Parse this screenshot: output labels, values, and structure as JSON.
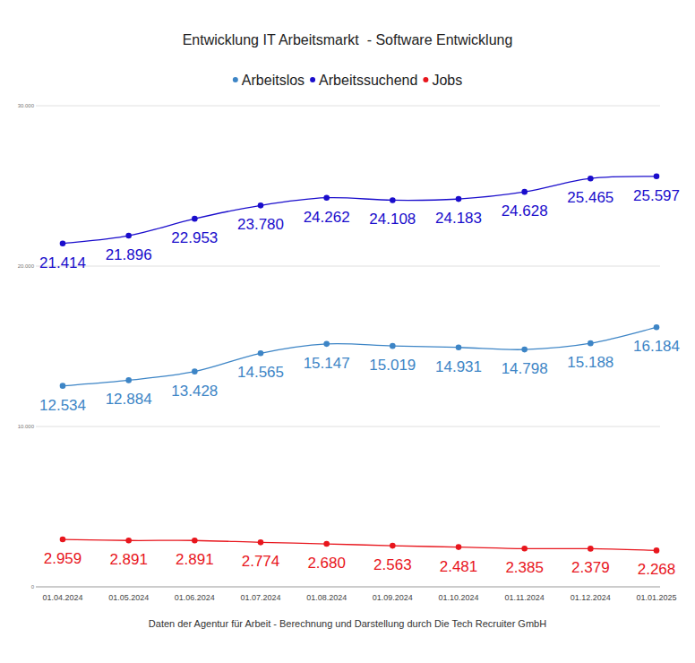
{
  "chart_data": {
    "type": "line",
    "title": "Entwicklung IT Arbeitsmarkt  - Software Entwicklung",
    "source": "Daten der Agentur für Arbeit - Berechnung und Darstellung durch Die Tech Recruiter GmbH",
    "categories": [
      "01.04.2024",
      "01.05.2024",
      "01.06.2024",
      "01.07.2024",
      "01.08.2024",
      "01.09.2024",
      "01.10.2024",
      "01.11.2024",
      "01.12.2024",
      "01.01.2025"
    ],
    "series": [
      {
        "name": "Arbeitslos",
        "color": "#3d85c6",
        "values": [
          12534,
          12884,
          13428,
          14565,
          15147,
          15019,
          14931,
          14798,
          15188,
          16184
        ],
        "value_labels": [
          "12.534",
          "12.884",
          "13.428",
          "14.565",
          "15.147",
          "15.019",
          "14.931",
          "14.798",
          "15.188",
          "16.184"
        ]
      },
      {
        "name": "Arbeitssuchend",
        "color": "#1a0dcc",
        "values": [
          21414,
          21896,
          22953,
          23780,
          24262,
          24108,
          24183,
          24628,
          25465,
          25597
        ],
        "value_labels": [
          "21.414",
          "21.896",
          "22.953",
          "23.780",
          "24.262",
          "24.108",
          "24.183",
          "24.628",
          "25.465",
          "25.597"
        ]
      },
      {
        "name": "Jobs",
        "color": "#e8161d",
        "values": [
          2959,
          2891,
          2891,
          2774,
          2680,
          2563,
          2481,
          2385,
          2379,
          2268
        ],
        "value_labels": [
          "2.959",
          "2.891",
          "2.891",
          "2.774",
          "2.680",
          "2.563",
          "2.481",
          "2.385",
          "2.379",
          "2.268"
        ]
      }
    ],
    "ylim": [
      0,
      30000
    ],
    "yticks": [
      0,
      {
        "value": 10000,
        "label": "10.000"
      },
      {
        "value": 20000,
        "label": "20.000"
      },
      {
        "value": 30000,
        "label": "30.000"
      }
    ],
    "grid": true,
    "legend": "top",
    "data_labels": true,
    "marker": "circle",
    "line_style": "smooth"
  }
}
